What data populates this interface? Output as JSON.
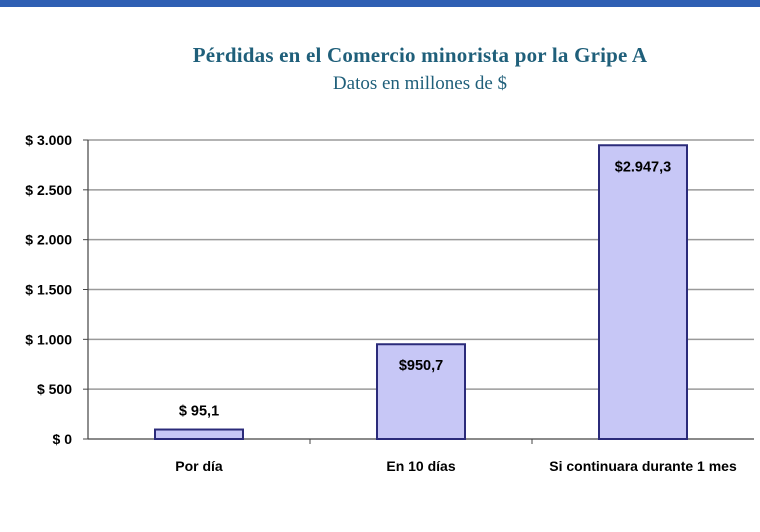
{
  "chart_data": {
    "type": "bar",
    "title": "Pérdidas en el Comercio minorista por la Gripe A",
    "subtitle": "Datos en millones de $",
    "categories": [
      "Por día",
      "En 10 días",
      "Si continuara durante 1 mes"
    ],
    "values": [
      95.1,
      950.7,
      2947.3
    ],
    "data_labels": [
      "$ 95,1",
      "$950,7",
      "$2.947,3"
    ],
    "ylim": [
      0,
      3000
    ],
    "yticks": [
      0,
      500,
      1000,
      1500,
      2000,
      2500,
      3000
    ],
    "ytick_labels": [
      "$ 0",
      "$ 500",
      "$ 1.000",
      "$ 1.500",
      "$ 2.000",
      "$ 2.500",
      "$ 3.000"
    ],
    "grid": true,
    "legend": "none",
    "colors": {
      "bar_fill": "#c7c7f6",
      "bar_stroke": "#2b2b7a",
      "grid": "#9a9a9a",
      "title": "#1f5f7a"
    }
  }
}
